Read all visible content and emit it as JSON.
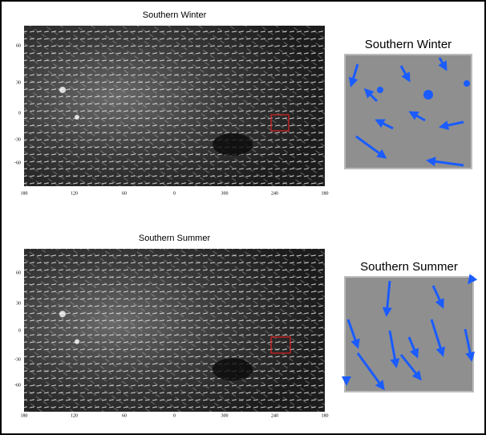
{
  "panels": [
    {
      "title": "Southern Winter",
      "inset_title": "Southern Winter",
      "y_ticks": [
        "60",
        "30",
        "0",
        "-30",
        "-60"
      ],
      "x_ticks": [
        "180",
        "120",
        "60",
        "0",
        "300",
        "240",
        "180"
      ]
    },
    {
      "title": "Southern Summer",
      "inset_title": "Southern Summer",
      "y_ticks": [
        "60",
        "30",
        "0",
        "-30",
        "-60"
      ],
      "x_ticks": [
        "180",
        "120",
        "60",
        "0",
        "300",
        "240",
        "180"
      ]
    }
  ]
}
